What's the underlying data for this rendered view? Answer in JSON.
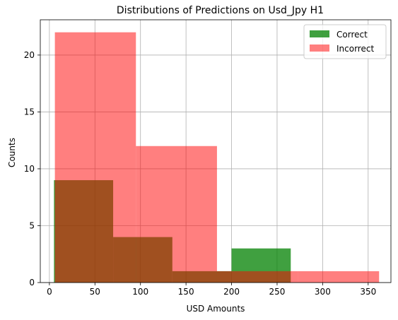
{
  "chart_data": {
    "type": "bar",
    "title": "Distributions of Predictions on Usd_Jpy H1",
    "xlabel": "USD Amounts",
    "ylabel": "Counts",
    "xlim": [
      -10,
      375
    ],
    "ylim": [
      0,
      23.1
    ],
    "xticks": [
      0,
      50,
      100,
      150,
      200,
      250,
      300,
      350
    ],
    "yticks": [
      0,
      5,
      10,
      15,
      20
    ],
    "grid": true,
    "legend_placement": "top-right",
    "series": [
      {
        "name": "Correct",
        "color": "#008000",
        "alpha": 0.75,
        "bins": [
          {
            "x0": 5,
            "x1": 70,
            "count": 9
          },
          {
            "x0": 70,
            "x1": 135,
            "count": 4
          },
          {
            "x0": 135,
            "x1": 200,
            "count": 1
          },
          {
            "x0": 200,
            "x1": 265,
            "count": 3
          }
        ]
      },
      {
        "name": "Incorrect",
        "color": "#ff0000",
        "alpha": 0.5,
        "bins": [
          {
            "x0": 6,
            "x1": 95,
            "count": 22
          },
          {
            "x0": 95,
            "x1": 184,
            "count": 12
          },
          {
            "x0": 184,
            "x1": 273,
            "count": 1
          },
          {
            "x0": 273,
            "x1": 362,
            "count": 1
          }
        ]
      }
    ]
  }
}
